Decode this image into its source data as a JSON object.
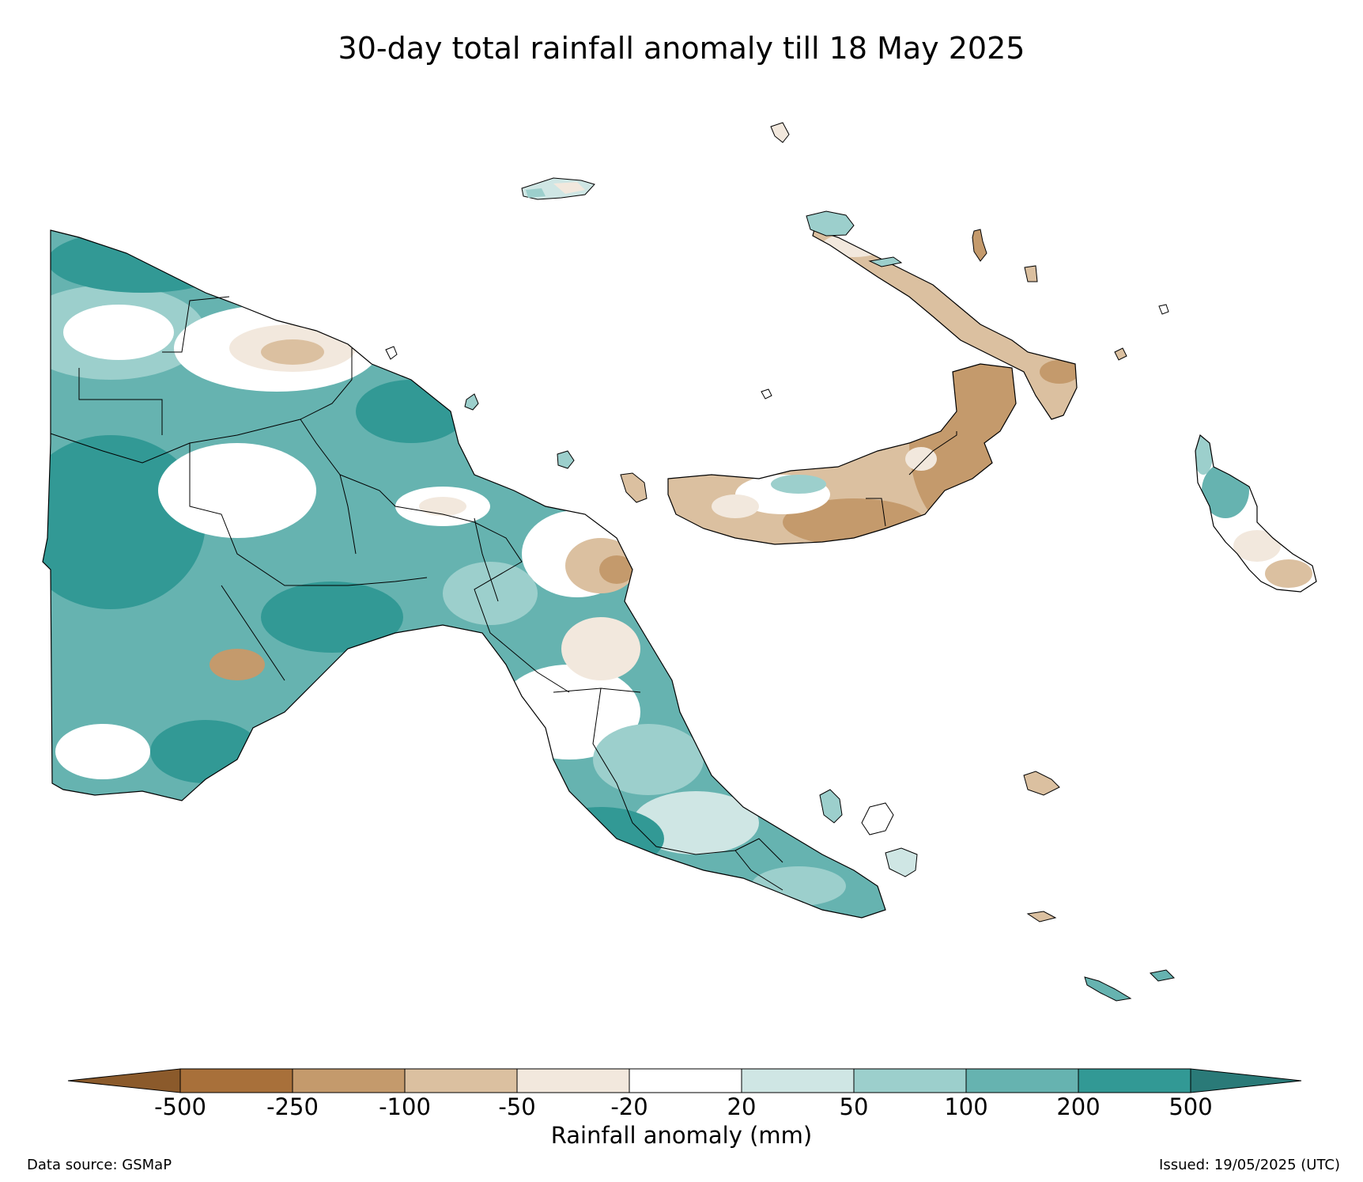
{
  "title": "30-day total rainfall anomaly till 18 May 2025",
  "colorbar": {
    "label": "Rainfall anomaly (mm)",
    "ticks": [
      "-500",
      "-250",
      "-100",
      "-50",
      "-20",
      "20",
      "50",
      "100",
      "200",
      "500"
    ],
    "boundaries": [
      -500,
      -250,
      -100,
      -50,
      -20,
      20,
      50,
      100,
      200,
      500
    ],
    "under_color": "#8b5a2b",
    "over_color": "#2a7a78",
    "colors": [
      "#a8703a",
      "#c49a6c",
      "#dbc0a0",
      "#f2e8dd",
      "#ffffff",
      "#cfe6e4",
      "#9ccfcc",
      "#66b3b0",
      "#329995"
    ]
  },
  "footer": {
    "source": "Data source: GSMaP",
    "issued": "Issued: 19/05/2025 (UTC)"
  },
  "map": {
    "ocean_color": "#ffffff",
    "boundary_color": "#000000"
  }
}
